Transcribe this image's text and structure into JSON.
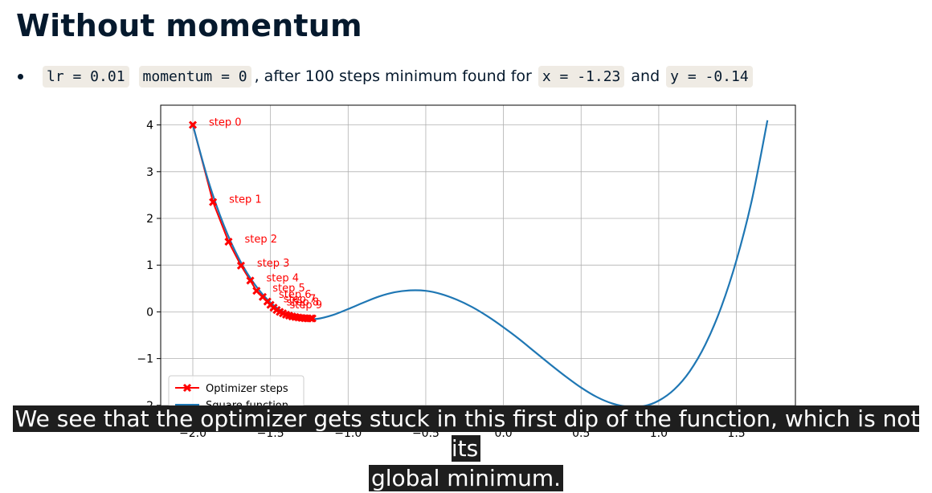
{
  "heading": "Without momentum",
  "bullet": {
    "lr_code": "lr = 0.01",
    "momentum_code": "momentum = 0",
    "middle_text": ", after 100 steps minimum found for",
    "x_code": "x = -1.23",
    "and_text": "and",
    "y_code": "y = -0.14"
  },
  "caption": {
    "line1": "We see that the optimizer gets stuck in this first dip of the function, which is not its",
    "line2": "global minimum."
  },
  "chart_data": {
    "type": "line",
    "xlim": [
      -2.2,
      1.9
    ],
    "ylim": [
      -2.2,
      4.2
    ],
    "xticks": [
      -2.0,
      -1.5,
      -1.0,
      -0.5,
      0.0,
      0.5,
      1.0,
      1.5
    ],
    "xtick_labels": [
      "−2.0",
      "−1.5",
      "−1.0",
      "−0.5",
      "0.0",
      "0.5",
      "1.0",
      "1.5"
    ],
    "yticks": [
      -2,
      -1,
      0,
      1,
      2,
      3,
      4
    ],
    "ytick_labels": [
      "−2",
      "−1",
      "0",
      "1",
      "2",
      "3",
      "4"
    ],
    "grid": true,
    "legend_position": "bottom-left",
    "series": [
      {
        "name": "Optimizer steps",
        "color": "#ff0000",
        "style": "line+x-markers",
        "x": [
          -2.0,
          -1.87,
          -1.77,
          -1.69,
          -1.63,
          -1.59,
          -1.55,
          -1.52,
          -1.5,
          -1.48,
          -1.46,
          -1.44,
          -1.42,
          -1.4,
          -1.38,
          -1.36,
          -1.34,
          -1.32,
          -1.3,
          -1.28,
          -1.26,
          -1.24,
          -1.23
        ],
        "y": [
          4.0,
          2.35,
          1.5,
          0.99,
          0.67,
          0.45,
          0.32,
          0.22,
          0.15,
          0.09,
          0.04,
          0.0,
          -0.03,
          -0.06,
          -0.08,
          -0.1,
          -0.11,
          -0.12,
          -0.13,
          -0.135,
          -0.14,
          -0.14,
          -0.14
        ],
        "annotations": [
          "step 0",
          "step 1",
          "step 2",
          "step 3",
          "step 4",
          "step 5",
          "step 6",
          "step 7",
          "step 8",
          "step 9"
        ]
      },
      {
        "name": "Square function",
        "color": "#1f77b4",
        "style": "line",
        "x": [
          -2.0,
          -1.9,
          -1.8,
          -1.7,
          -1.6,
          -1.5,
          -1.4,
          -1.3,
          -1.2,
          -1.1,
          -1.0,
          -0.9,
          -0.8,
          -0.7,
          -0.6,
          -0.5,
          -0.4,
          -0.3,
          -0.2,
          -0.1,
          0.0,
          0.1,
          0.2,
          0.3,
          0.4,
          0.5,
          0.6,
          0.7,
          0.8,
          0.9,
          1.0,
          1.1,
          1.2,
          1.3,
          1.4,
          1.5,
          1.6,
          1.7
        ],
        "y": [
          4.0,
          2.8,
          1.85,
          1.12,
          0.58,
          0.2,
          -0.04,
          -0.15,
          -0.15,
          -0.07,
          0.06,
          0.2,
          0.33,
          0.42,
          0.46,
          0.45,
          0.38,
          0.26,
          0.1,
          -0.1,
          -0.33,
          -0.58,
          -0.85,
          -1.12,
          -1.38,
          -1.62,
          -1.82,
          -1.96,
          -2.03,
          -2.02,
          -1.9,
          -1.66,
          -1.27,
          -0.7,
          0.08,
          1.1,
          2.4,
          4.1
        ]
      }
    ]
  }
}
